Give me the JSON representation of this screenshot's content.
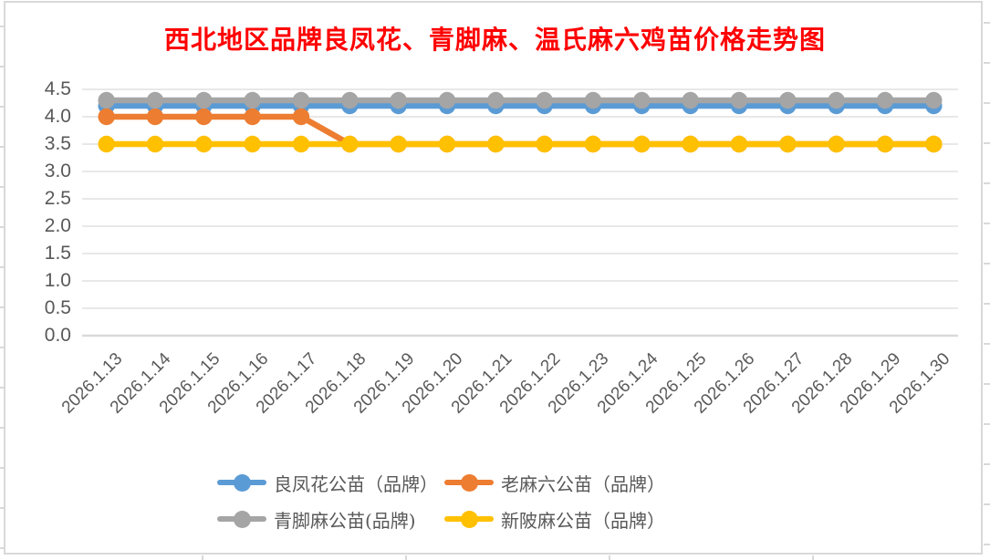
{
  "chart": {
    "title": "西北地区品牌良凤花、青脚麻、温氏麻六鸡苗价格走势图",
    "title_color": "#FF0000"
  },
  "chart_data": {
    "type": "line",
    "title": "西北地区品牌良凤花、青脚麻、温氏麻六鸡苗价格走势图",
    "categories": [
      "2026.1.13",
      "2026.1.14",
      "2026.1.15",
      "2026.1.16",
      "2026.1.17",
      "2026.1.18",
      "2026.1.19",
      "2026.1.20",
      "2026.1.21",
      "2026.1.22",
      "2026.1.23",
      "2026.1.24",
      "2026.1.25",
      "2026.1.26",
      "2026.1.27",
      "2026.1.28",
      "2026.1.29",
      "2026.1.30"
    ],
    "series": [
      {
        "name": "良凤花公苗（品牌）",
        "color": "#5B9BD5",
        "values": [
          4.2,
          4.2,
          4.2,
          4.2,
          4.2,
          4.2,
          4.2,
          4.2,
          4.2,
          4.2,
          4.2,
          4.2,
          4.2,
          4.2,
          4.2,
          4.2,
          4.2,
          4.2
        ]
      },
      {
        "name": "老麻六公苗（品牌）",
        "color": "#ED7D31",
        "values": [
          4.0,
          4.0,
          4.0,
          4.0,
          4.0,
          3.5,
          3.5,
          3.5,
          3.5,
          3.5,
          3.5,
          3.5,
          3.5,
          3.5,
          3.5,
          3.5,
          3.5,
          3.5
        ]
      },
      {
        "name": "青脚麻公苗(品牌)",
        "color": "#A5A5A5",
        "values": [
          4.3,
          4.3,
          4.3,
          4.3,
          4.3,
          4.3,
          4.3,
          4.3,
          4.3,
          4.3,
          4.3,
          4.3,
          4.3,
          4.3,
          4.3,
          4.3,
          4.3,
          4.3
        ]
      },
      {
        "name": "新陂麻公苗（品牌）",
        "color": "#FFC000",
        "values": [
          3.5,
          3.5,
          3.5,
          3.5,
          3.5,
          3.5,
          3.5,
          3.5,
          3.5,
          3.5,
          3.5,
          3.5,
          3.5,
          3.5,
          3.5,
          3.5,
          3.5,
          3.5
        ]
      }
    ],
    "xlabel": "",
    "ylabel": "",
    "ylim": [
      0,
      4.5
    ],
    "ytick_step": 0.5,
    "ytick_labels": [
      "0.0",
      "0.5",
      "1.0",
      "1.5",
      "2.0",
      "2.5",
      "3.0",
      "3.5",
      "4.0",
      "4.5"
    ],
    "grid": true,
    "gridline_color": "#D9D9D9",
    "axis_text_color": "#595959",
    "legend_position": "bottom"
  }
}
